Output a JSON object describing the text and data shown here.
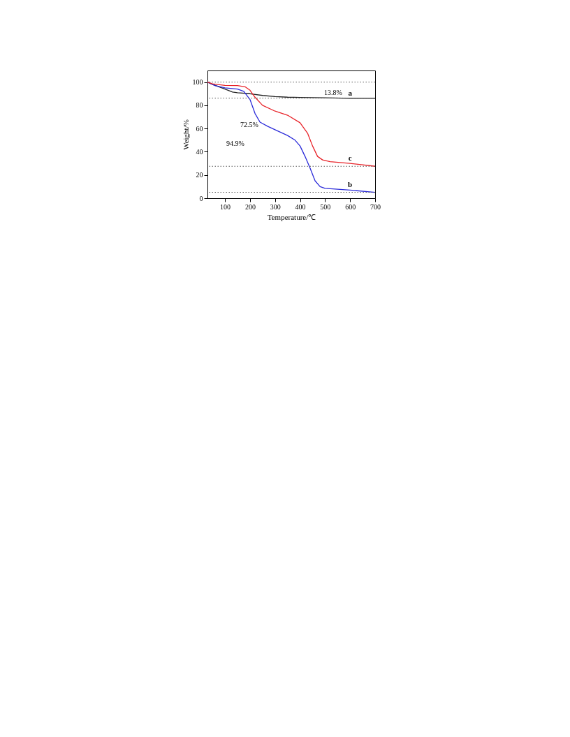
{
  "chart_data": {
    "type": "line",
    "xlabel": "Temperature/℃",
    "ylabel": "Weight/%",
    "xlim": [
      30,
      700
    ],
    "ylim": [
      0,
      110
    ],
    "xticks": [
      100,
      200,
      300,
      400,
      500,
      600,
      700
    ],
    "yticks": [
      0,
      20,
      40,
      60,
      80,
      100
    ],
    "grid": false,
    "line_style": "solid",
    "marker": "none",
    "series": [
      {
        "name": "a",
        "color": "#222222",
        "x": [
          30,
          50,
          100,
          130,
          150,
          200,
          250,
          300,
          350,
          400,
          500,
          600,
          700
        ],
        "values": [
          100,
          98,
          94,
          91.5,
          90.8,
          90,
          88.5,
          87.5,
          87,
          86.8,
          86.5,
          86,
          86
        ]
      },
      {
        "name": "b",
        "color": "#2b2bd9",
        "x": [
          30,
          60,
          100,
          150,
          175,
          200,
          220,
          240,
          270,
          300,
          350,
          380,
          400,
          420,
          440,
          460,
          480,
          500,
          600,
          700
        ],
        "values": [
          100,
          97,
          95,
          94,
          92,
          85,
          73,
          65.5,
          62,
          59,
          54,
          50,
          45,
          36,
          26,
          15,
          10,
          8.5,
          7,
          5
        ]
      },
      {
        "name": "c",
        "color": "#e8242a",
        "x": [
          30,
          50,
          100,
          150,
          180,
          200,
          220,
          250,
          300,
          350,
          400,
          430,
          450,
          470,
          490,
          520,
          600,
          700
        ],
        "values": [
          100,
          98.5,
          97.2,
          97,
          96,
          93,
          87,
          80,
          75,
          71.5,
          65,
          56,
          45,
          36,
          33,
          31.5,
          30,
          27.5
        ]
      }
    ],
    "ref_lines": [
      {
        "axis": "y",
        "value": 100,
        "color": "#555555",
        "line_style": "dotted"
      },
      {
        "axis": "y",
        "value": 86.2,
        "color": "#555555",
        "line_style": "dotted"
      },
      {
        "axis": "y",
        "value": 27.5,
        "color": "#555555",
        "line_style": "dotted"
      },
      {
        "axis": "y",
        "value": 5.1,
        "color": "#555555",
        "line_style": "dotted"
      }
    ],
    "annotations": [
      "13.8%",
      "72.5%",
      "94.9%"
    ]
  }
}
